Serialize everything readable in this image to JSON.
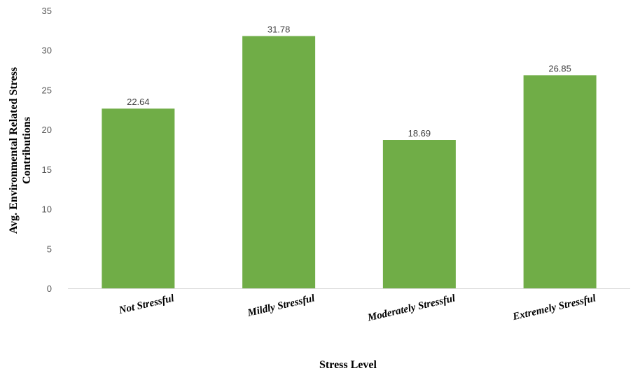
{
  "chart_data": {
    "type": "bar",
    "categories": [
      "Not Stressful",
      "Mildly Stressful",
      "Moderately Stressful",
      "Extremely Stressful"
    ],
    "values": [
      22.64,
      31.78,
      18.69,
      26.85
    ],
    "data_labels": [
      "22.64",
      "31.78",
      "18.69",
      "26.85"
    ],
    "xlabel": "Stress Level",
    "ylabel_lines": [
      "Avg. Environmental Related Stress",
      "Contributions"
    ],
    "ylim": [
      0,
      35
    ],
    "yticks": [
      "0",
      "5",
      "10",
      "15",
      "20",
      "25",
      "30",
      "35"
    ],
    "grid": false,
    "legend": "none",
    "bar_color": "#70AD47",
    "axis_color": "#D9D9D9"
  }
}
